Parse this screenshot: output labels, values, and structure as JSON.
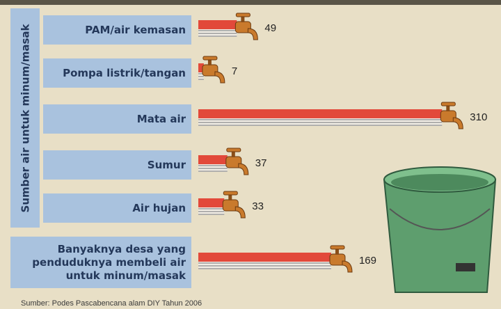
{
  "chart_data": {
    "type": "bar",
    "y_label": "Sumber air untuk minum/masak",
    "categories": [
      "PAM/air kemasan",
      "Pompa listrik/tangan",
      "Mata air",
      "Sumur",
      "Air hujan",
      "Banyaknya desa yang penduduknya membeli air untuk minum/masak"
    ],
    "values": [
      49,
      7,
      310,
      37,
      33,
      169
    ],
    "color": "#e2493a",
    "source": "Sumber: Podes Pascabencana alam DIY Tahun 2006"
  }
}
